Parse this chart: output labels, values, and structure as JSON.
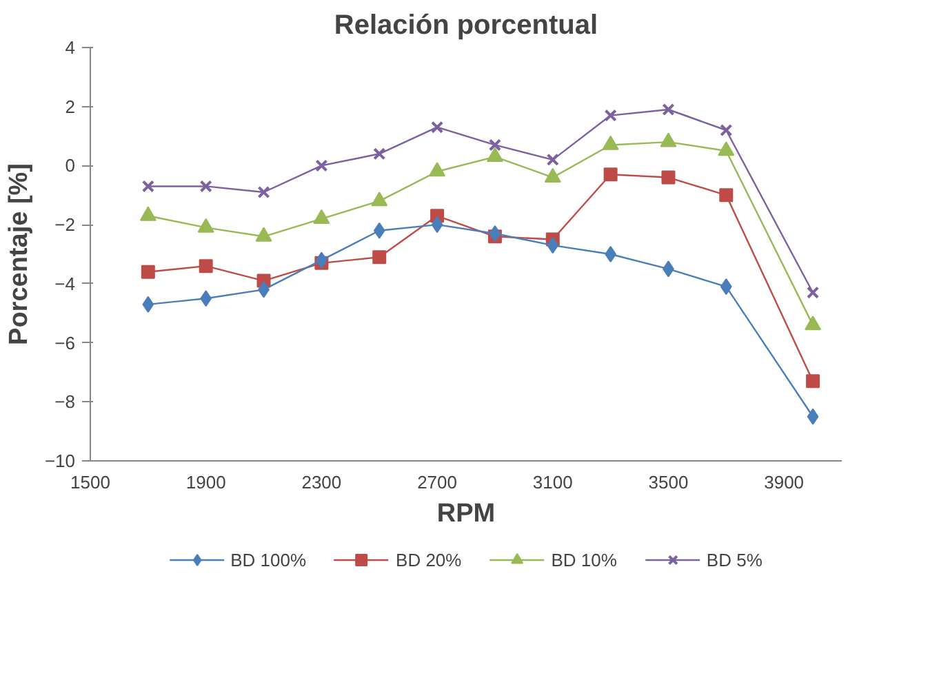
{
  "chart_data": {
    "type": "line",
    "title": "Relación porcentual",
    "xlabel": "RPM",
    "ylabel": "Porcentaje [%]",
    "x": [
      1700,
      1900,
      2100,
      2300,
      2500,
      2700,
      2900,
      3100,
      3300,
      3500,
      3700,
      4000
    ],
    "xlim": [
      1500,
      4100
    ],
    "xticks": [
      1500,
      1900,
      2300,
      2700,
      3100,
      3500,
      3900
    ],
    "ylim": [
      -10,
      4
    ],
    "yticks": [
      -10,
      -8,
      -6,
      -4,
      -2,
      0,
      2,
      4
    ],
    "grid": false,
    "legend": "bottom",
    "line_style": "solid",
    "series": [
      {
        "name": "BD 100%",
        "color": "#4a7ebb",
        "marker": "diamond",
        "values": [
          -4.7,
          -4.5,
          -4.2,
          -3.2,
          -2.2,
          -2.0,
          -2.3,
          -2.7,
          -3.0,
          -3.5,
          -4.1,
          -8.5
        ]
      },
      {
        "name": "BD 20%",
        "color": "#be4b48",
        "marker": "square",
        "values": [
          -3.6,
          -3.4,
          -3.9,
          -3.3,
          -3.1,
          -1.7,
          -2.4,
          -2.5,
          -0.3,
          -0.4,
          -1.0,
          -7.3
        ]
      },
      {
        "name": "BD 10%",
        "color": "#98b954",
        "marker": "triangle",
        "values": [
          -1.7,
          -2.1,
          -2.4,
          -1.8,
          -1.2,
          -0.2,
          0.3,
          -0.4,
          0.7,
          0.8,
          0.5,
          -5.4
        ]
      },
      {
        "name": "BD 5%",
        "color": "#7d60a0",
        "marker": "cross",
        "values": [
          -0.7,
          -0.7,
          -0.9,
          0.0,
          0.4,
          1.3,
          0.7,
          0.2,
          1.7,
          1.9,
          1.2,
          -4.3
        ]
      }
    ]
  }
}
